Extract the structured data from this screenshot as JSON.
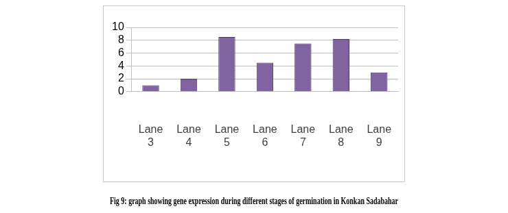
{
  "chart_data": {
    "type": "bar",
    "title": "Fig 9: graph showing gene expression during different stages of germination in Konkan Sadabahar",
    "categories": [
      "Lane 3",
      "Lane 4",
      "Lane 5",
      "Lane 6",
      "Lane 7",
      "Lane 8",
      "Lane 9"
    ],
    "values": [
      1,
      2,
      8.5,
      4.5,
      7.5,
      8.2,
      3
    ],
    "color": "#8064a2",
    "ylim": [
      0,
      10
    ],
    "yticks": [
      0,
      2,
      4,
      6,
      8,
      10
    ],
    "grid": true
  }
}
